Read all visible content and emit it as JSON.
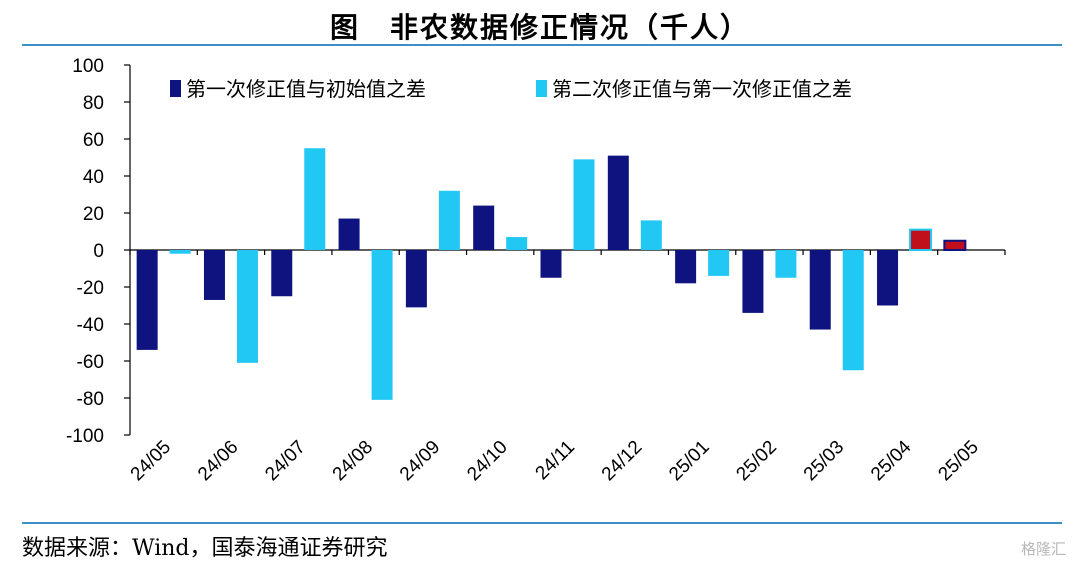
{
  "title": "图　非农数据修正情况（千人）",
  "source": "数据来源：Wind，国泰海通证券研究",
  "watermark": "格隆汇",
  "colors": {
    "series1": "#0f1380",
    "series2": "#22c8f4",
    "highlight": "#c0101c",
    "rule": "#3d8fc9"
  },
  "chart_data": {
    "type": "bar",
    "title": "图　非农数据修正情况（千人）",
    "xlabel": "",
    "ylabel": "",
    "ylim": [
      -100,
      100
    ],
    "yticks": [
      100,
      80,
      60,
      40,
      20,
      0,
      -20,
      -40,
      -60,
      -80,
      -100
    ],
    "grid": false,
    "legend": "top-left",
    "categories": [
      "24/05",
      "24/06",
      "24/07",
      "24/08",
      "24/09",
      "24/10",
      "24/11",
      "24/12",
      "25/01",
      "25/02",
      "25/03",
      "25/04",
      "25/05"
    ],
    "series": [
      {
        "name": "第一次修正值与初始值之差",
        "values": [
          -54,
          -27,
          -25,
          17,
          -31,
          24,
          -15,
          51,
          -18,
          -34,
          -43,
          -30,
          5
        ],
        "highlight_index": [
          12
        ]
      },
      {
        "name": "第二次修正值与第一次修正值之差",
        "values": [
          -2,
          -61,
          55,
          -81,
          32,
          7,
          49,
          16,
          -14,
          -15,
          -65,
          11,
          null
        ],
        "highlight_index": [
          11
        ]
      }
    ]
  }
}
